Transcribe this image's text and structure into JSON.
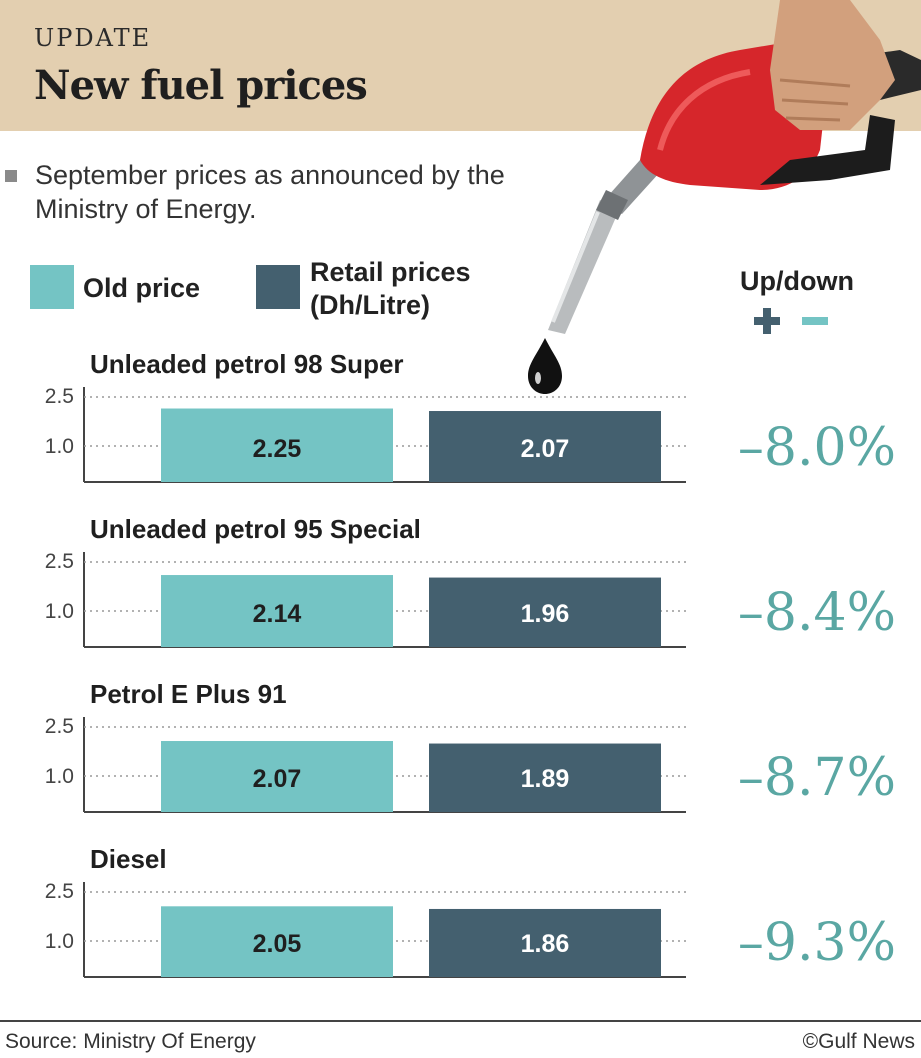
{
  "header": {
    "kicker": "UPDATE",
    "title": "New fuel prices"
  },
  "subtitle": "September prices as  announced by the Ministry of Energy.",
  "legend": {
    "old_label": "Old price",
    "retail_label_line1": "Retail prices",
    "retail_label_line2": "(Dh/Litre)",
    "updown_label": "Up/down"
  },
  "colors": {
    "old": "#74c4c4",
    "retail": "#44606f",
    "change": "#5aa7a3",
    "header_bg": "#e3cfb0"
  },
  "icons": [
    "fuel-nozzle-icon",
    "fuel-drop-icon",
    "plus-icon",
    "minus-icon"
  ],
  "footer": {
    "source": "Source: Ministry Of Energy",
    "credit": "©Gulf News"
  },
  "chart_data": {
    "type": "bar",
    "series": [
      {
        "name": "Old price",
        "color": "#74c4c4"
      },
      {
        "name": "Retail prices (Dh/Litre)",
        "color": "#44606f"
      }
    ],
    "yticks": [
      "2.5",
      "1.0"
    ],
    "panels": [
      {
        "title": "Unleaded petrol 98 Super",
        "old": 2.25,
        "old_label": "2.25",
        "retail": 2.07,
        "retail_label": "2.07",
        "change": "–8.0%"
      },
      {
        "title": "Unleaded petrol 95 Special",
        "old": 2.14,
        "old_label": "2.14",
        "retail": 1.96,
        "retail_label": "1.96",
        "change": "–8.4%"
      },
      {
        "title": "Petrol E Plus 91",
        "old": 2.07,
        "old_label": "2.07",
        "retail": 1.89,
        "retail_label": "1.89",
        "change": "–8.7%"
      },
      {
        "title": "Diesel",
        "old": 2.05,
        "old_label": "2.05",
        "retail": 1.86,
        "retail_label": "1.86",
        "change": "–9.3%"
      }
    ]
  }
}
